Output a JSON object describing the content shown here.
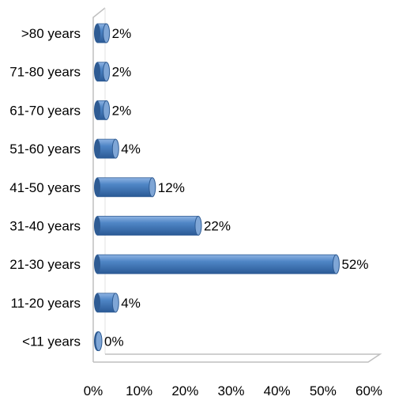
{
  "chart_data": {
    "type": "bar",
    "orientation": "horizontal",
    "style": "3d-cylinder",
    "categories": [
      ">80 years",
      "71-80 years",
      "61-70 years",
      "51-60 years",
      "41-50 years",
      "31-40 years",
      "21-30 years",
      "11-20 years",
      "<11 years"
    ],
    "values": [
      2,
      2,
      2,
      4,
      12,
      22,
      52,
      4,
      0
    ],
    "data_labels": [
      "2%",
      "2%",
      "2%",
      "4%",
      "12%",
      "22%",
      "52%",
      "4%",
      "0%"
    ],
    "xlim": [
      0,
      60
    ],
    "x_ticks": [
      "0%",
      "10%",
      "20%",
      "30%",
      "40%",
      "50%",
      "60%"
    ],
    "grid": false,
    "legend": "none",
    "title": "",
    "xlabel": "",
    "ylabel": "",
    "colors": {
      "bar": "#4a7ebb",
      "bar_dark": "#2e5b93",
      "bar_light": "#7fa6d6",
      "axis": "#bfbfbf",
      "wall": "#d9d9d9"
    }
  }
}
